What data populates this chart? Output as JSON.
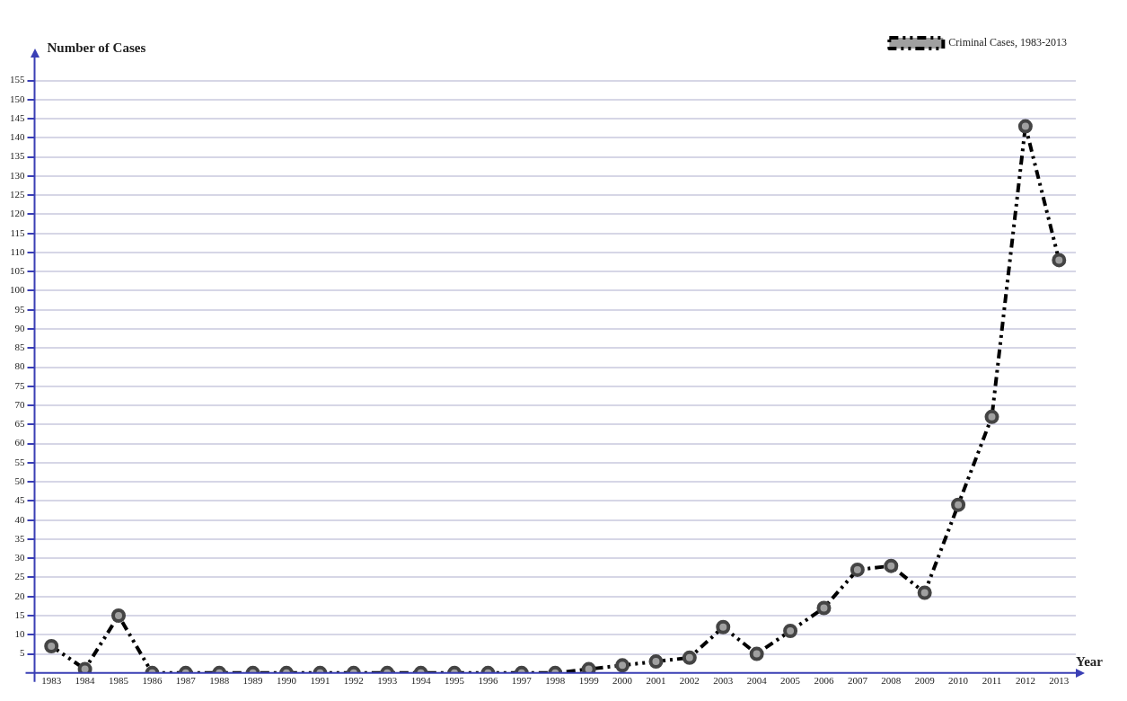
{
  "chart_data": {
    "type": "line",
    "xlabel": "Year",
    "ylabel": "Number of Cases",
    "categories": [
      "1983",
      "1984",
      "1985",
      "1986",
      "1987",
      "1988",
      "1989",
      "1990",
      "1991",
      "1992",
      "1993",
      "1994",
      "1995",
      "1996",
      "1997",
      "1998",
      "1999",
      "2000",
      "2001",
      "2002",
      "2003",
      "2004",
      "2005",
      "2006",
      "2007",
      "2008",
      "2009",
      "2010",
      "2011",
      "2012",
      "2013"
    ],
    "series": [
      {
        "name": "Criminal Cases, 1983-2013",
        "color": "#000000",
        "values": [
          7,
          1,
          15,
          0,
          0,
          0,
          0,
          0,
          0,
          0,
          0,
          0,
          0,
          0,
          0,
          0,
          1,
          2,
          3,
          4,
          12,
          5,
          11,
          17,
          27,
          28,
          21,
          44,
          67,
          143,
          108
        ]
      }
    ],
    "ylim": [
      0,
      161
    ],
    "yticks": [
      5,
      10,
      15,
      20,
      25,
      30,
      35,
      40,
      45,
      50,
      55,
      60,
      65,
      70,
      75,
      80,
      85,
      90,
      95,
      100,
      105,
      110,
      115,
      120,
      125,
      130,
      135,
      140,
      145,
      150,
      155
    ],
    "grid": "y",
    "legend": "top right",
    "marker": "circle",
    "line_style": "dashed"
  }
}
